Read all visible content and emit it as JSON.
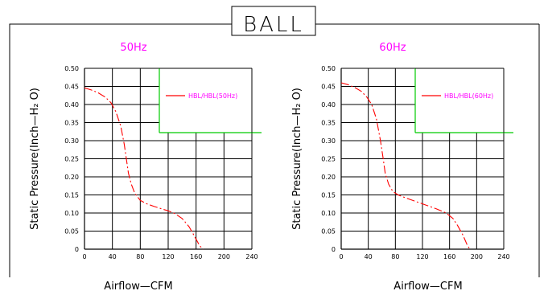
{
  "title": "BALL",
  "colors": {
    "frame": "#000000",
    "grid": "#000000",
    "curve": "#ff0000",
    "legend_text": "#ff00ff",
    "legend_box": "#00cc00",
    "subtitle": "#ff00ff"
  },
  "chart_data": [
    {
      "type": "line",
      "title": "50Hz",
      "xlabel": "Airflow—CFM",
      "ylabel": "Static Pressure(Inch—H₂ O)",
      "xlim": [
        0,
        240
      ],
      "ylim": [
        0,
        0.5
      ],
      "grid": true,
      "legend_position": "top-right",
      "x_ticks": [
        0,
        40,
        80,
        120,
        160,
        200,
        240
      ],
      "x_tick_labels": [
        "0",
        "40",
        "80",
        "120",
        "160",
        "200",
        "240"
      ],
      "y_ticks": [
        0,
        0.05,
        0.1,
        0.15,
        0.2,
        0.25,
        0.3,
        0.35,
        0.4,
        0.45,
        0.5
      ],
      "y_tick_labels": [
        "0",
        "0.05",
        "0.10",
        "0.15",
        "0.20",
        "0.25",
        "0.30",
        "0.35",
        "0.40",
        "0.45",
        "0.50"
      ],
      "series": [
        {
          "name": "HBL/HBL(50Hz)",
          "x": [
            0,
            10,
            20,
            30,
            38,
            45,
            52,
            57,
            60,
            63,
            67,
            72,
            80,
            90,
            100,
            110,
            120,
            130,
            140,
            150,
            158,
            165,
            170
          ],
          "y": [
            0.446,
            0.44,
            0.432,
            0.42,
            0.405,
            0.38,
            0.34,
            0.29,
            0.25,
            0.21,
            0.18,
            0.155,
            0.135,
            0.125,
            0.118,
            0.112,
            0.106,
            0.098,
            0.085,
            0.062,
            0.035,
            0.01,
            0.0
          ]
        }
      ]
    },
    {
      "type": "line",
      "title": "60Hz",
      "xlabel": "Airflow—CFM",
      "ylabel": "Static Pressure(Inch—H₂ O)",
      "xlim": [
        0,
        240
      ],
      "ylim": [
        0,
        0.5
      ],
      "grid": true,
      "legend_position": "top-right",
      "x_ticks": [
        0,
        40,
        80,
        120,
        160,
        200,
        240
      ],
      "x_tick_labels": [
        "0",
        "40",
        "80",
        "120",
        "160",
        "200",
        "240"
      ],
      "y_ticks": [
        0,
        0.05,
        0.1,
        0.15,
        0.2,
        0.25,
        0.3,
        0.35,
        0.4,
        0.45,
        0.5
      ],
      "y_tick_labels": [
        "0",
        "0.05",
        "0.10",
        "0.15",
        "0.20",
        "0.25",
        "0.30",
        "0.35",
        "0.40",
        "0.45",
        "0.50"
      ],
      "series": [
        {
          "name": "HBL/HBL(60Hz)",
          "x": [
            0,
            10,
            20,
            30,
            38,
            45,
            52,
            58,
            62,
            65,
            70,
            76,
            84,
            95,
            110,
            125,
            140,
            155,
            165,
            172,
            180,
            186,
            190
          ],
          "y": [
            0.46,
            0.455,
            0.447,
            0.436,
            0.42,
            0.4,
            0.36,
            0.3,
            0.25,
            0.21,
            0.18,
            0.16,
            0.15,
            0.142,
            0.132,
            0.122,
            0.112,
            0.1,
            0.085,
            0.065,
            0.038,
            0.012,
            0.0
          ]
        }
      ]
    }
  ]
}
